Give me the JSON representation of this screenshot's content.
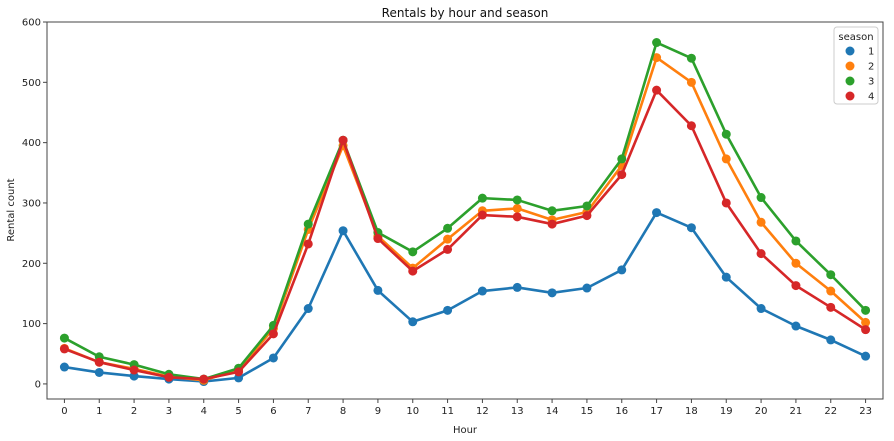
{
  "chart_data": {
    "type": "line",
    "title": "Rentals by hour and season",
    "xlabel": "Hour",
    "ylabel": "Rental count",
    "categories": [
      "0",
      "1",
      "2",
      "3",
      "4",
      "5",
      "6",
      "7",
      "8",
      "9",
      "10",
      "11",
      "12",
      "13",
      "14",
      "15",
      "16",
      "17",
      "18",
      "19",
      "20",
      "21",
      "22",
      "23"
    ],
    "ylim": [
      -25,
      600
    ],
    "yticks": [
      0,
      100,
      200,
      300,
      400,
      500,
      600
    ],
    "grid": false,
    "legend": {
      "title": "season",
      "placement": "top-right"
    },
    "markers": "circle",
    "series": [
      {
        "name": "1",
        "color": "#1f77b4",
        "values": [
          28,
          19,
          13,
          8,
          4,
          10,
          43,
          125,
          254,
          155,
          103,
          122,
          154,
          160,
          151,
          159,
          189,
          284,
          259,
          177,
          125,
          96,
          73,
          46
        ]
      },
      {
        "name": "2",
        "color": "#ff7f0e",
        "values": [
          59,
          36,
          25,
          12,
          6,
          23,
          92,
          256,
          395,
          245,
          192,
          240,
          287,
          291,
          272,
          285,
          362,
          541,
          500,
          373,
          268,
          200,
          154,
          102
        ]
      },
      {
        "name": "3",
        "color": "#2ca02c",
        "values": [
          76,
          45,
          32,
          16,
          8,
          26,
          97,
          265,
          404,
          251,
          219,
          258,
          308,
          305,
          287,
          295,
          373,
          566,
          540,
          414,
          309,
          237,
          181,
          122
        ]
      },
      {
        "name": "4",
        "color": "#d62728",
        "values": [
          58,
          36,
          23,
          11,
          8,
          20,
          83,
          232,
          404,
          241,
          187,
          223,
          280,
          277,
          265,
          279,
          347,
          487,
          428,
          300,
          216,
          163,
          127,
          90
        ]
      }
    ]
  }
}
